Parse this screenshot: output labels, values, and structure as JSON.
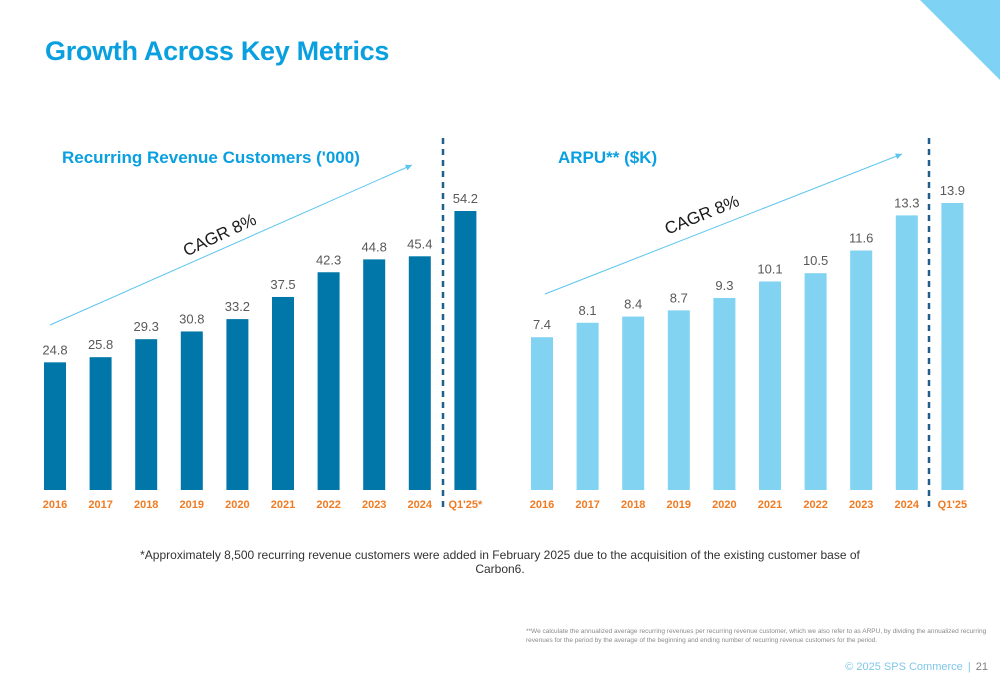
{
  "slide": {
    "title": "Growth Across Key Metrics",
    "footnote": "*Approximately 8,500 recurring revenue customers were added in February 2025 due to the acquisition of the existing customer base of Carbon6.",
    "arpu_note": "**We calculate the annualized average recurring revenues per recurring revenue customer, which we also refer to as ARPU, by dividing the annualized recurring revenues for the period by the average of the beginning and ending number of recurring revenue customers for the period.",
    "copyright": "© 2025 SPS Commerce",
    "separator": "|",
    "page_number": "21",
    "accent_color": "#0aa0e0"
  },
  "chart_data": [
    {
      "type": "bar",
      "title": "Recurring Revenue Customers ('000)",
      "categories": [
        "2016",
        "2017",
        "2018",
        "2019",
        "2020",
        "2021",
        "2022",
        "2023",
        "2024",
        "Q1'25*"
      ],
      "values": [
        24.8,
        25.8,
        29.3,
        30.8,
        33.2,
        37.5,
        42.3,
        44.8,
        45.4,
        54.2
      ],
      "annotation": "CAGR 8%",
      "bar_color": "#0077a8",
      "ylim": [
        0,
        54.2
      ],
      "separator_before_last": true
    },
    {
      "type": "bar",
      "title": "ARPU** ($K)",
      "categories": [
        "2016",
        "2017",
        "2018",
        "2019",
        "2020",
        "2021",
        "2022",
        "2023",
        "2024",
        "Q1'25"
      ],
      "values": [
        7.4,
        8.1,
        8.4,
        8.7,
        9.3,
        10.1,
        10.5,
        11.6,
        13.3,
        13.9
      ],
      "annotation": "CAGR 8%",
      "bar_color": "#82d3f2",
      "ylim": [
        0,
        13.9
      ],
      "separator_before_last": true
    }
  ]
}
